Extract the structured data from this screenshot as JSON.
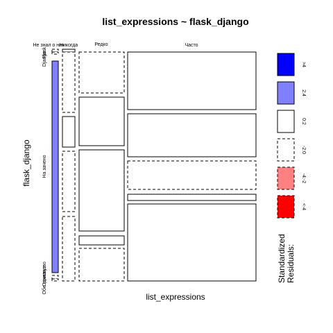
{
  "chart_data": {
    "type": "mosaic",
    "title": "list_expressions ~ flask_django",
    "xlabel": "list_expressions",
    "ylabel": "flask_django",
    "x_categories": [
      "Не знал о них",
      "Никогда",
      "Редко",
      "Часто"
    ],
    "y_categories": [
      "Flask",
      "Django",
      "На зачено",
      "Одинаково",
      "Обе помогут"
    ],
    "colors": {
      "gt4": "#0000ff",
      "2to4": "#8080ff",
      "neutral": "#ffffff",
      "m2to4": "#ff8080",
      "ltm4": "#ff0000"
    },
    "legend": {
      "title": "Standardized\nResiduals:",
      "entries": [
        ">4",
        "2:4",
        "0:2",
        "-2:0",
        "-4:-2",
        "<-4"
      ],
      "placement": "right"
    },
    "cells": [
      {
        "x": "Не знал о них",
        "y": "Flask",
        "residual": -0.5
      },
      {
        "x": "Не знал о них",
        "y": "Django",
        "residual": -0.5
      },
      {
        "x": "Не знал о них",
        "y": "На зачено",
        "residual": 2.5
      },
      {
        "x": "Не знал о них",
        "y": "Одинаково",
        "residual": -0.5
      },
      {
        "x": "Не знал о них",
        "y": "Обе помогут",
        "residual": -0.5
      },
      {
        "x": "Никогда",
        "y": "Flask",
        "residual": 0.8
      },
      {
        "x": "Никогда",
        "y": "Django",
        "residual": -0.6
      },
      {
        "x": "Никогда",
        "y": "На зачено",
        "residual": 0.6
      },
      {
        "x": "Никогда",
        "y": "Одинаково",
        "residual": -0.6
      },
      {
        "x": "Никогда",
        "y": "Обе помогут",
        "residual": -0.6
      },
      {
        "x": "Редко",
        "y": "Flask",
        "residual": -0.7
      },
      {
        "x": "Редко",
        "y": "Django",
        "residual": 0.5
      },
      {
        "x": "Редко",
        "y": "На зачено",
        "residual": 0.5
      },
      {
        "x": "Редко",
        "y": "Одинаково",
        "residual": 0.4
      },
      {
        "x": "Редко",
        "y": "Обе помогут",
        "residual": -0.7
      },
      {
        "x": "Часто",
        "y": "Flask",
        "residual": 0.6
      },
      {
        "x": "Часто",
        "y": "Django",
        "residual": 0.4
      },
      {
        "x": "Часто",
        "y": "На зачено",
        "residual": -0.5
      },
      {
        "x": "Часто",
        "y": "Одинаково",
        "residual": 0.3
      },
      {
        "x": "Часто",
        "y": "Обе помогут",
        "residual": 0.5
      }
    ]
  }
}
